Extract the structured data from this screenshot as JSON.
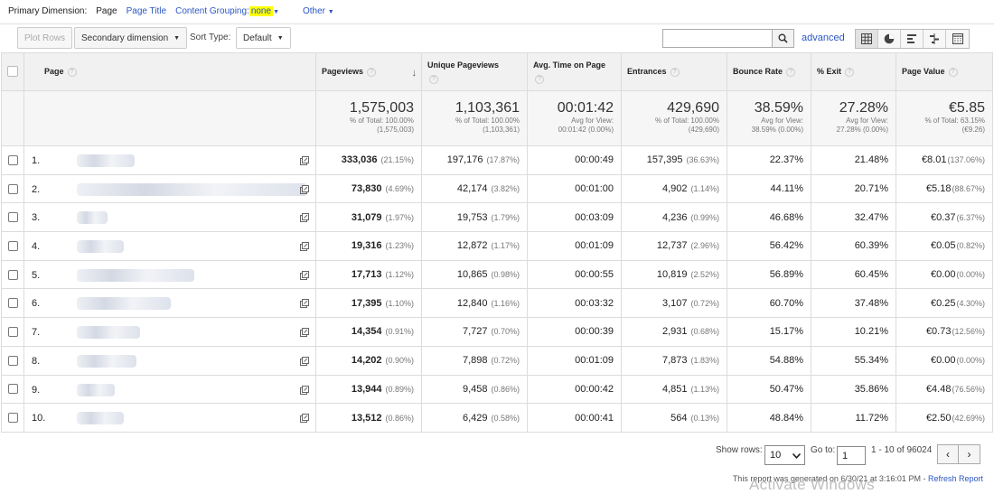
{
  "dimension_bar": {
    "label": "Primary Dimension:",
    "current": "Page",
    "page_title": "Page Title",
    "content_grouping": "Content Grouping:",
    "content_grouping_value": "none",
    "other": "Other"
  },
  "toolbar": {
    "plot_rows": "Plot Rows",
    "secondary_dimension": "Secondary dimension",
    "sort_type_label": "Sort Type:",
    "sort_type_value": "Default",
    "search_placeholder": "",
    "advanced": "advanced"
  },
  "columns": {
    "page": "Page",
    "pageviews": "Pageviews",
    "unique_pageviews": "Unique Pageviews",
    "avg_time": "Avg. Time on Page",
    "entrances": "Entrances",
    "bounce_rate": "Bounce Rate",
    "exit": "% Exit",
    "page_value": "Page Value"
  },
  "totals": {
    "pageviews": {
      "value": "1,575,003",
      "l1": "% of Total: 100.00%",
      "l2": "(1,575,003)"
    },
    "unique_pageviews": {
      "value": "1,103,361",
      "l1": "% of Total: 100.00%",
      "l2": "(1,103,361)"
    },
    "avg_time": {
      "value": "00:01:42",
      "l1": "Avg for View:",
      "l2": "00:01:42 (0.00%)"
    },
    "entrances": {
      "value": "429,690",
      "l1": "% of Total: 100.00%",
      "l2": "(429,690)"
    },
    "bounce_rate": {
      "value": "38.59%",
      "l1": "Avg for View:",
      "l2": "38.59% (0.00%)"
    },
    "exit": {
      "value": "27.28%",
      "l1": "Avg for View:",
      "l2": "27.28% (0.00%)"
    },
    "page_value": {
      "value": "€5.85",
      "l1": "% of Total: 63.15%",
      "l2": "(€9.26)"
    }
  },
  "rows": [
    {
      "n": "1.",
      "pv": "333,036",
      "pvp": "(21.15%)",
      "upv": "197,176",
      "upvp": "(17.87%)",
      "time": "00:00:49",
      "ent": "157,395",
      "entp": "(36.63%)",
      "br": "22.37%",
      "ex": "21.48%",
      "val": "€8.01",
      "valp": "(137.06%)"
    },
    {
      "n": "2.",
      "pv": "73,830",
      "pvp": "(4.69%)",
      "upv": "42,174",
      "upvp": "(3.82%)",
      "time": "00:01:00",
      "ent": "4,902",
      "entp": "(1.14%)",
      "br": "44.11%",
      "ex": "20.71%",
      "val": "€5.18",
      "valp": "(88.67%)"
    },
    {
      "n": "3.",
      "pv": "31,079",
      "pvp": "(1.97%)",
      "upv": "19,753",
      "upvp": "(1.79%)",
      "time": "00:03:09",
      "ent": "4,236",
      "entp": "(0.99%)",
      "br": "46.68%",
      "ex": "32.47%",
      "val": "€0.37",
      "valp": "(6.37%)"
    },
    {
      "n": "4.",
      "pv": "19,316",
      "pvp": "(1.23%)",
      "upv": "12,872",
      "upvp": "(1.17%)",
      "time": "00:01:09",
      "ent": "12,737",
      "entp": "(2.96%)",
      "br": "56.42%",
      "ex": "60.39%",
      "val": "€0.05",
      "valp": "(0.82%)"
    },
    {
      "n": "5.",
      "pv": "17,713",
      "pvp": "(1.12%)",
      "upv": "10,865",
      "upvp": "(0.98%)",
      "time": "00:00:55",
      "ent": "10,819",
      "entp": "(2.52%)",
      "br": "56.89%",
      "ex": "60.45%",
      "val": "€0.00",
      "valp": "(0.00%)"
    },
    {
      "n": "6.",
      "pv": "17,395",
      "pvp": "(1.10%)",
      "upv": "12,840",
      "upvp": "(1.16%)",
      "time": "00:03:32",
      "ent": "3,107",
      "entp": "(0.72%)",
      "br": "60.70%",
      "ex": "37.48%",
      "val": "€0.25",
      "valp": "(4.30%)"
    },
    {
      "n": "7.",
      "pv": "14,354",
      "pvp": "(0.91%)",
      "upv": "7,727",
      "upvp": "(0.70%)",
      "time": "00:00:39",
      "ent": "2,931",
      "entp": "(0.68%)",
      "br": "15.17%",
      "ex": "10.21%",
      "val": "€0.73",
      "valp": "(12.56%)"
    },
    {
      "n": "8.",
      "pv": "14,202",
      "pvp": "(0.90%)",
      "upv": "7,898",
      "upvp": "(0.72%)",
      "time": "00:01:09",
      "ent": "7,873",
      "entp": "(1.83%)",
      "br": "54.88%",
      "ex": "55.34%",
      "val": "€0.00",
      "valp": "(0.00%)"
    },
    {
      "n": "9.",
      "pv": "13,944",
      "pvp": "(0.89%)",
      "upv": "9,458",
      "upvp": "(0.86%)",
      "time": "00:00:42",
      "ent": "4,851",
      "entp": "(1.13%)",
      "br": "50.47%",
      "ex": "35.86%",
      "val": "€4.48",
      "valp": "(76.56%)"
    },
    {
      "n": "10.",
      "pv": "13,512",
      "pvp": "(0.86%)",
      "upv": "6,429",
      "upvp": "(0.58%)",
      "time": "00:00:41",
      "ent": "564",
      "entp": "(0.13%)",
      "br": "48.84%",
      "ex": "11.72%",
      "val": "€2.50",
      "valp": "(42.69%)"
    }
  ],
  "footer": {
    "show_rows_label": "Show rows:",
    "show_rows_value": "10",
    "goto_label": "Go to:",
    "goto_value": "1",
    "range": "1 - 10 of 96024",
    "prev": "‹",
    "next": "›",
    "generated": "This report was generated on 6/30/21 at 3:16:01 PM -",
    "refresh": "Refresh Report"
  },
  "watermark": "Activate Windows"
}
